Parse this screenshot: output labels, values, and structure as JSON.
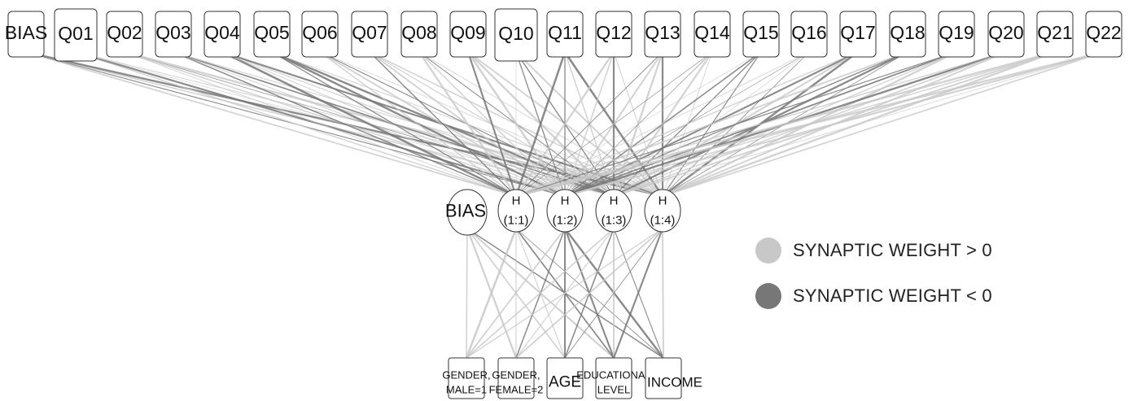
{
  "colors": {
    "positive": "#c8c8c8",
    "negative": "#777777"
  },
  "input_layer": [
    "BIAS",
    "Q01",
    "Q02",
    "Q03",
    "Q04",
    "Q05",
    "Q06",
    "Q07",
    "Q08",
    "Q09",
    "Q10",
    "Q11",
    "Q12",
    "Q13",
    "Q14",
    "Q15",
    "Q16",
    "Q17",
    "Q18",
    "Q19",
    "Q20",
    "Q21",
    "Q22"
  ],
  "hidden_layer": [
    {
      "line1": "BIAS",
      "line2": ""
    },
    {
      "line1": "H",
      "line2": "(1:1)"
    },
    {
      "line1": "H",
      "line2": "(1:2)"
    },
    {
      "line1": "H",
      "line2": "(1:3)"
    },
    {
      "line1": "H",
      "line2": "(1:4)"
    }
  ],
  "output_layer": [
    {
      "line1": "GENDER,",
      "line2": "MALE=1"
    },
    {
      "line1": "GENDER,",
      "line2": "FEMALE=2"
    },
    {
      "line1": "AGE",
      "line2": ""
    },
    {
      "line1": "EDUCATIONAL",
      "line2": "LEVEL"
    },
    {
      "line1": "INCOME",
      "line2": ""
    }
  ],
  "legend": {
    "positive_label": "SYNAPTIC WEIGHT > 0",
    "negative_label": "SYNAPTIC WEIGHT < 0"
  }
}
